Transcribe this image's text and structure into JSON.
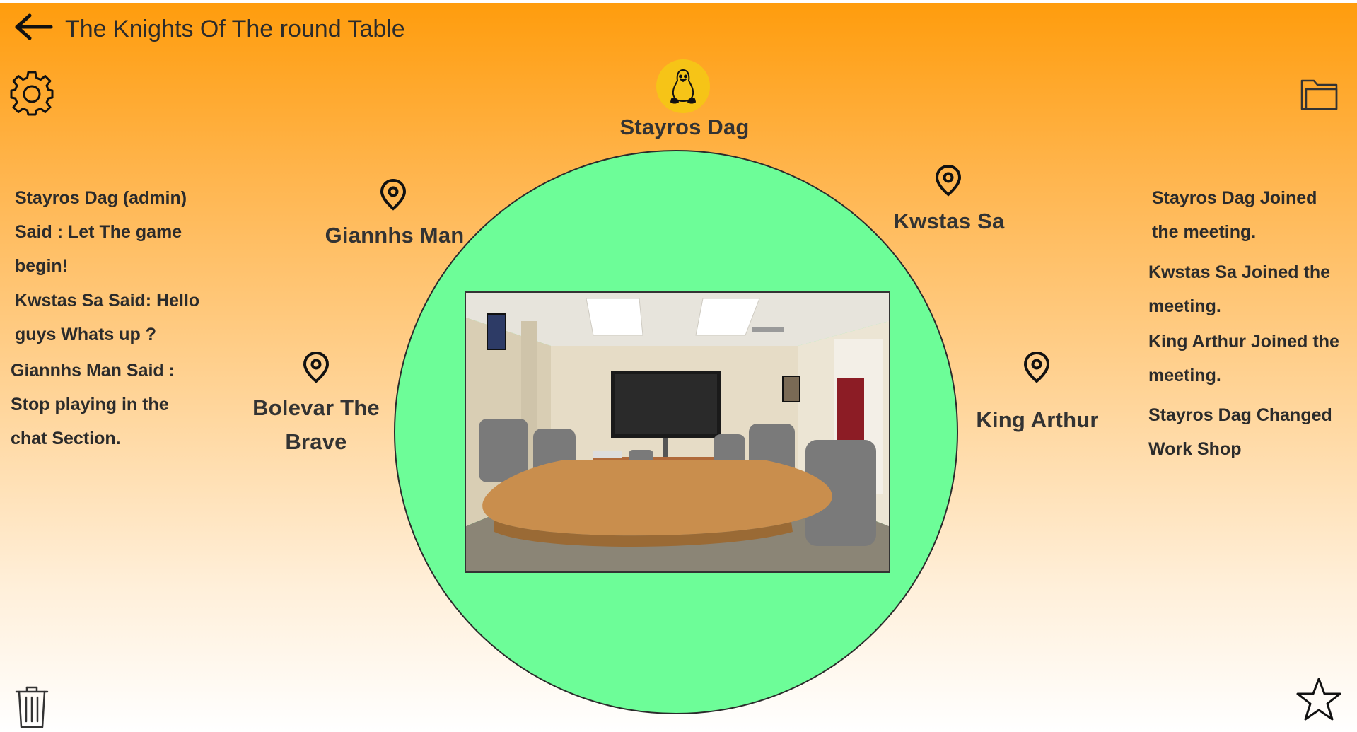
{
  "header": {
    "title": "The Knights Of The round Table"
  },
  "icons": {
    "back": "arrow-left-icon",
    "settings": "gear-icon",
    "folder": "folder-icon",
    "trash": "trash-icon",
    "star": "star-icon",
    "avatar": "linux-penguin-icon",
    "seat_marker": "location-pin-icon"
  },
  "colors": {
    "table": "#6dfd98",
    "avatar_bg": "#f6c417",
    "gradient_top": "#ff9c0c",
    "gradient_bottom": "#ffffff"
  },
  "seats": {
    "top": "Stayros Dag",
    "top_left": "Giannhs Man",
    "top_right": "Kwstas Sa",
    "left": "Bolevar The Brave",
    "right": "King Arthur"
  },
  "chat": {
    "lines": [
      "Stayros Dag (admin)",
      "Said : Let The game",
      "begin!",
      "Kwstas Sa Said: Hello",
      "guys Whats up ?",
      "Giannhs Man Said :",
      "Stop playing in the",
      "chat Section."
    ]
  },
  "activity_log": {
    "lines": [
      "Stayros Dag Joined",
      "the meeting.",
      "Kwstas Sa Joined the",
      "meeting.",
      "King Arthur Joined the",
      "meeting.",
      "Stayros Dag Changed",
      "Work Shop"
    ]
  }
}
